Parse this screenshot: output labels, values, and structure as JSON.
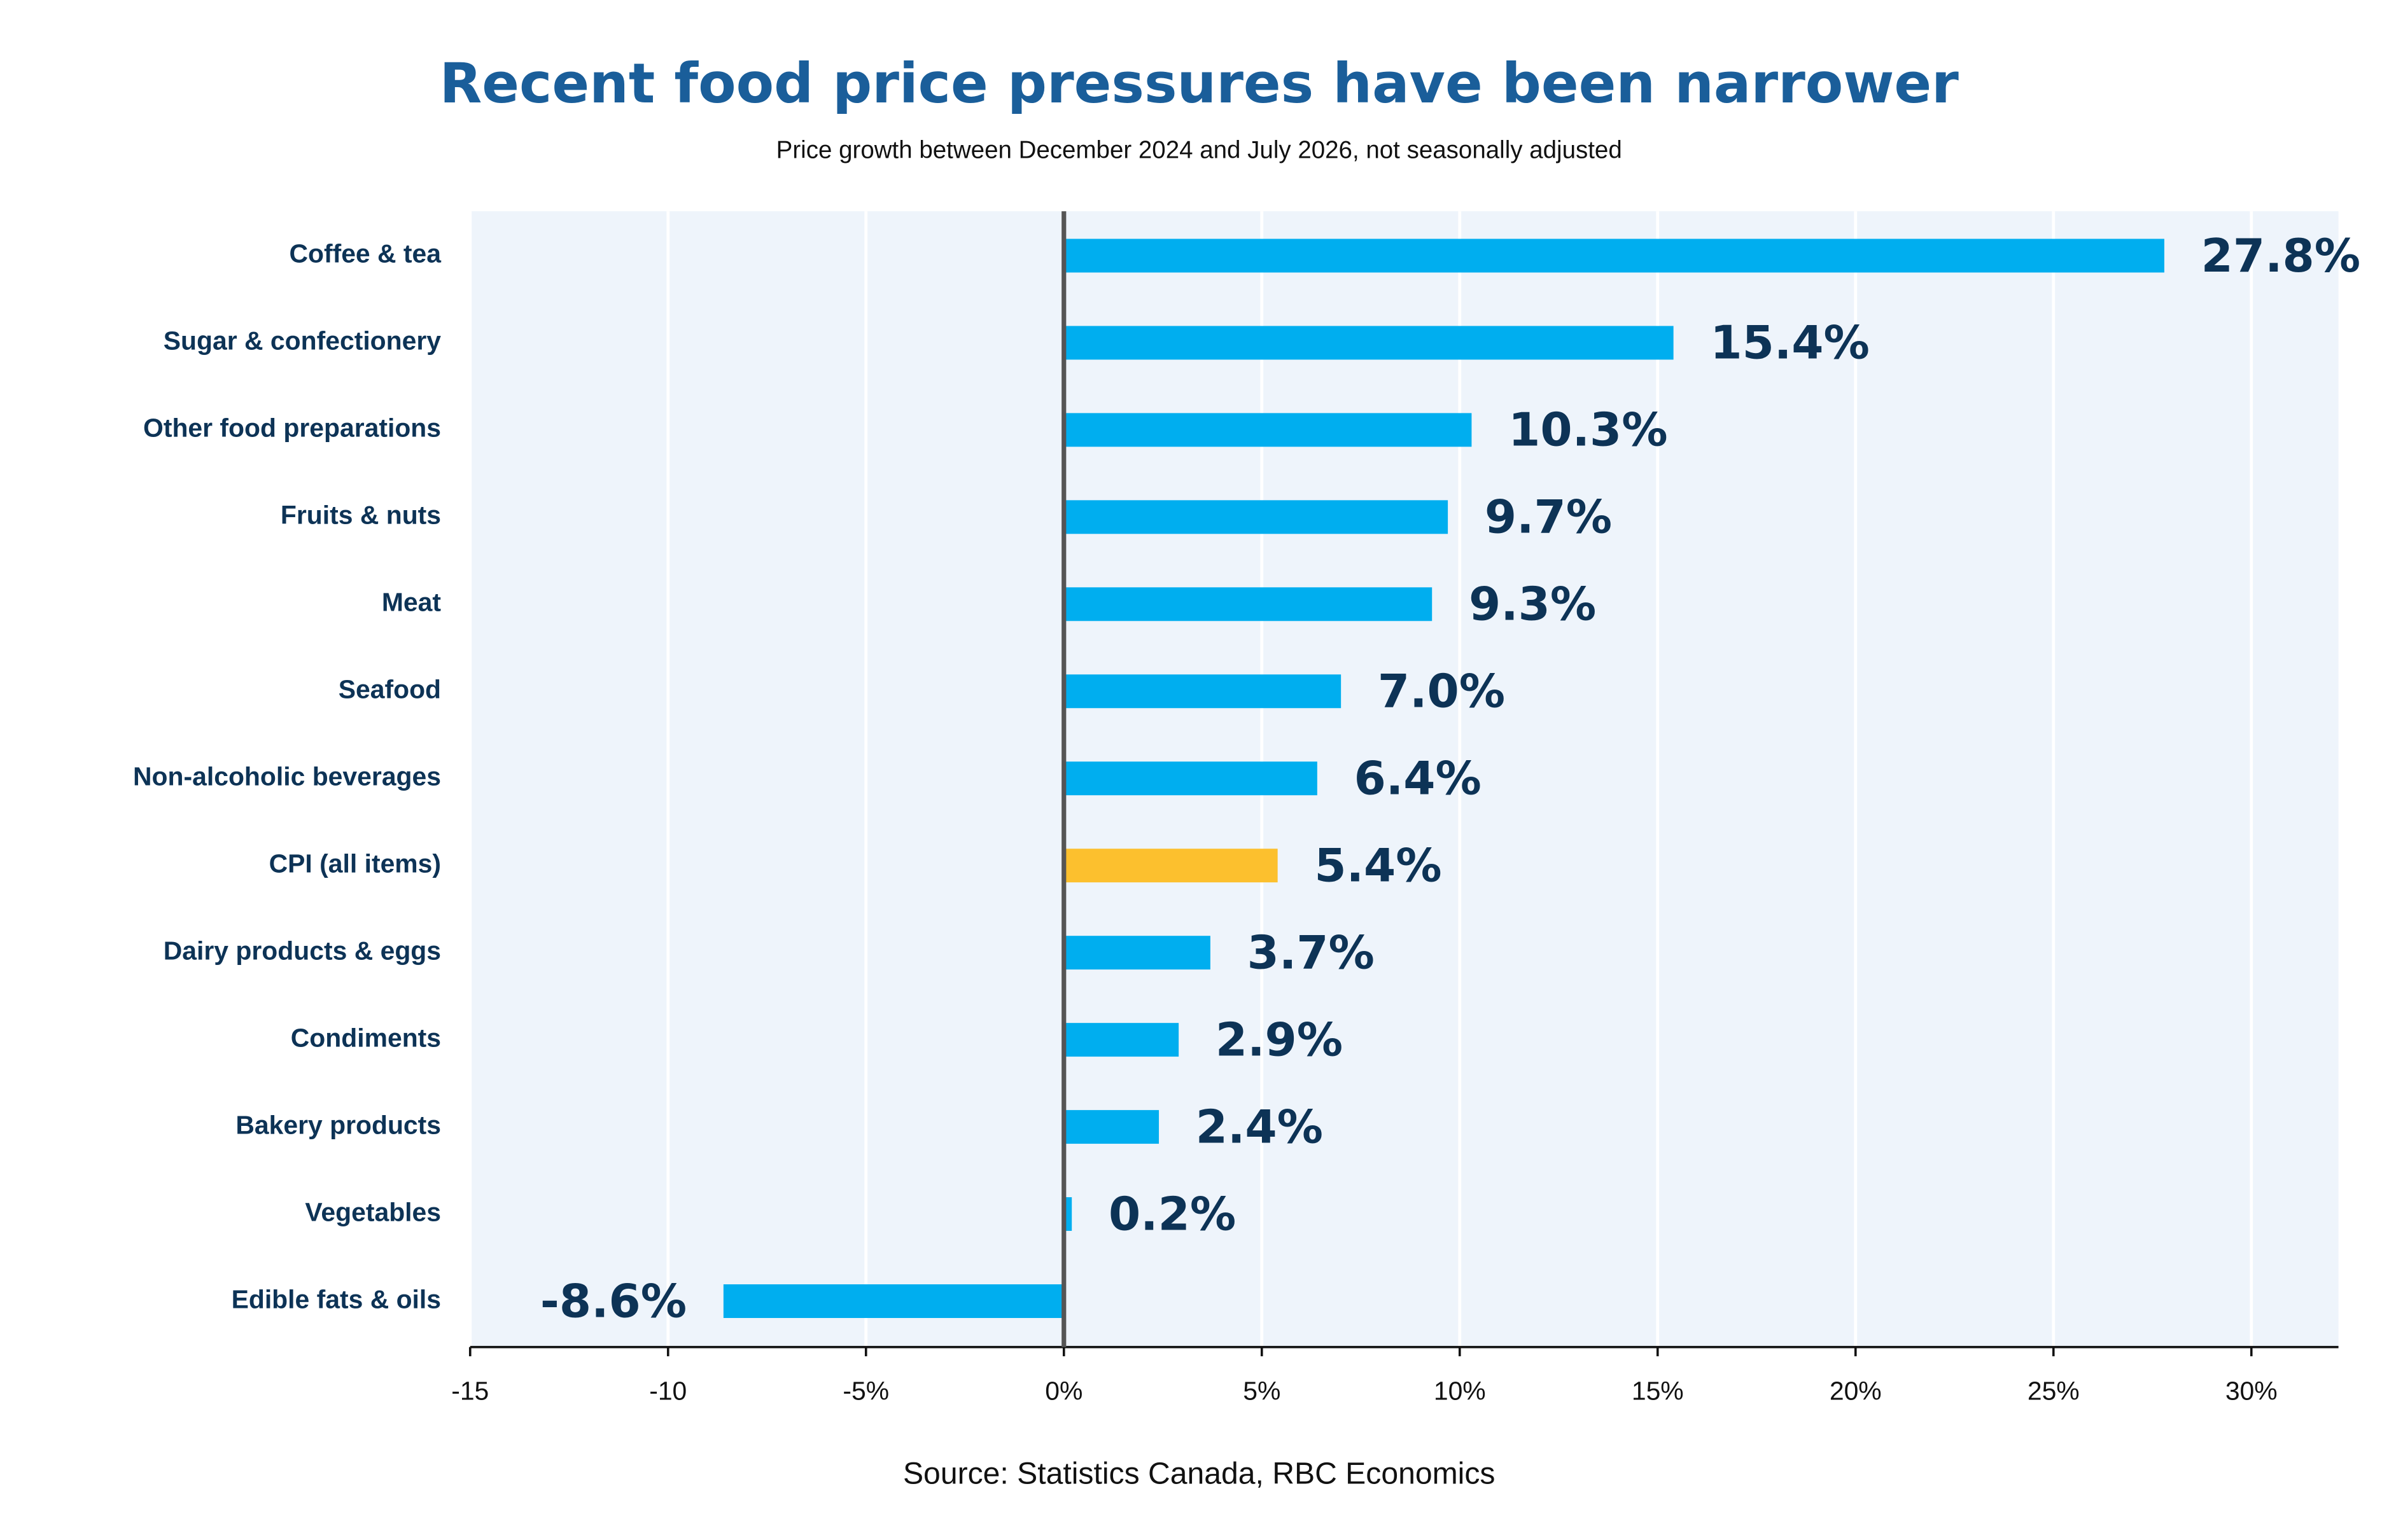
{
  "chart_data": {
    "type": "hbar",
    "title": "Recent food price pressures have been narrower",
    "subtitle": "Price growth between December 2024 and July 2026, not seasonally adjusted",
    "source": "Source: Statistics Canada, RBC Economics",
    "categories": [
      "Coffee & tea",
      "Sugar & confectionery",
      "Other food preparations",
      "Fruits & nuts",
      "Meat",
      "Seafood",
      "Non-alcoholic beverages",
      "CPI (all items)",
      "Dairy products & eggs",
      "Condiments",
      "Bakery products",
      "Vegetables",
      "Edible fats & oils"
    ],
    "values": [
      27.8,
      15.4,
      10.3,
      9.7,
      9.3,
      7.0,
      6.4,
      5.4,
      3.7,
      2.9,
      2.4,
      0.2,
      -8.6
    ],
    "value_labels": [
      "27.8%",
      "15.4%",
      "10.3%",
      "9.7%",
      "9.3%",
      "7.0%",
      "6.4%",
      "5.4%",
      "3.7%",
      "2.9%",
      "2.4%",
      "0.2%",
      "-8.6%"
    ],
    "colors": [
      "#00aeef",
      "#00aeef",
      "#00aeef",
      "#00aeef",
      "#00aeef",
      "#00aeef",
      "#00aeef",
      "#fcc02e",
      "#00aeef",
      "#00aeef",
      "#00aeef",
      "#00aeef",
      "#00aeef"
    ],
    "xlim": [
      -15,
      32.2
    ],
    "xticks": [
      -15,
      -10,
      {
        "value": -5,
        "label": "-5%"
      },
      {
        "value": 0,
        "label": "0%"
      },
      {
        "value": 5,
        "label": "5%"
      },
      {
        "value": 10,
        "label": "10%"
      },
      {
        "value": 15,
        "label": "15%"
      },
      {
        "value": 20,
        "label": "20%"
      },
      {
        "value": 25,
        "label": "25%"
      },
      {
        "value": 30,
        "label": "30%"
      }
    ],
    "grid": true
  }
}
